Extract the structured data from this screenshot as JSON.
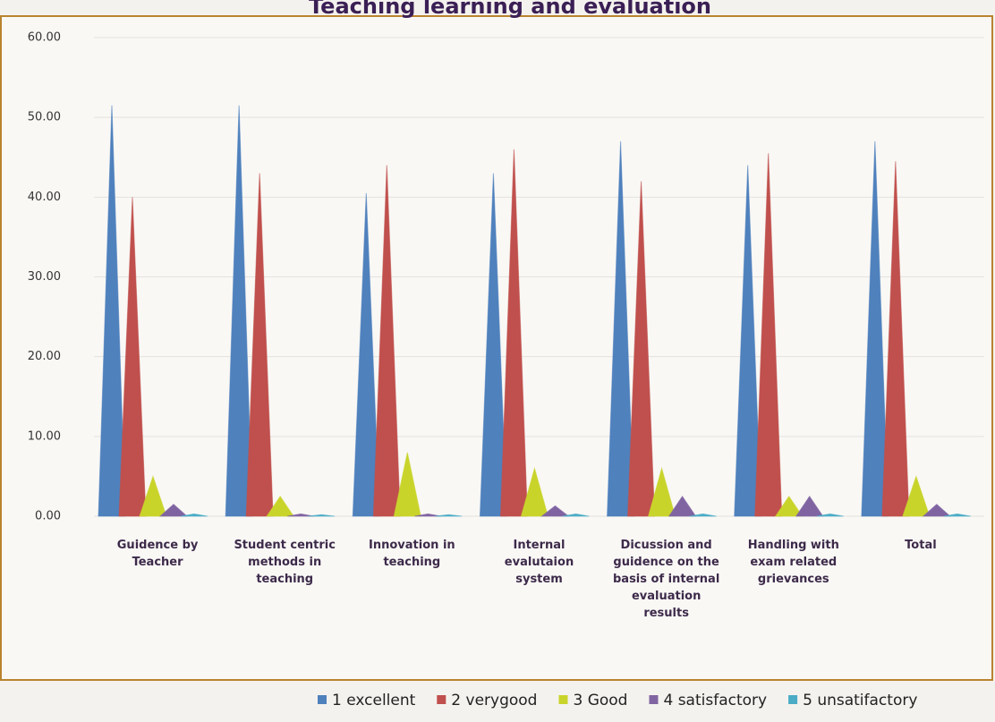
{
  "chart_data": {
    "type": "cone-bar",
    "title": "Teaching learning and evaluation",
    "categories": [
      "Guidence by Teacher",
      "Student centric methods in teaching",
      "Innovation in teaching",
      "Internal evalutaion system",
      "Dicussion and guidence on the basis of internal evaluation results",
      "Handling with exam related grievances",
      "Total"
    ],
    "series": [
      {
        "name": "1 excellent",
        "color": "#4f81bd",
        "values": [
          51.5,
          51.5,
          40.5,
          43,
          47,
          44,
          47
        ]
      },
      {
        "name": "2 verygood",
        "color": "#c0504d",
        "values": [
          40,
          43,
          44,
          46,
          42,
          45.5,
          44.5
        ]
      },
      {
        "name": "3 Good",
        "color": "#c9d42b",
        "values": [
          5,
          2.5,
          8,
          6,
          6,
          2.5,
          5
        ]
      },
      {
        "name": "4 satisfactory",
        "color": "#8064a2",
        "values": [
          1.5,
          0.3,
          0.3,
          1.3,
          2.5,
          2.5,
          1.5
        ]
      },
      {
        "name": "5 unsatifactory",
        "color": "#4bacc6",
        "values": [
          0.3,
          0.2,
          0.2,
          0.3,
          0.3,
          0.3,
          0.3
        ]
      }
    ],
    "ylim": [
      0,
      60
    ],
    "yticks": [
      {
        "value": 0,
        "label": "0.00"
      },
      {
        "value": 10,
        "label": "10.00"
      },
      {
        "value": 20,
        "label": "20.00"
      },
      {
        "value": 30,
        "label": "30.00"
      },
      {
        "value": 40,
        "label": "40.00"
      },
      {
        "value": 50,
        "label": "50.00"
      },
      {
        "value": 60,
        "label": "60.00"
      }
    ],
    "grid": true
  }
}
